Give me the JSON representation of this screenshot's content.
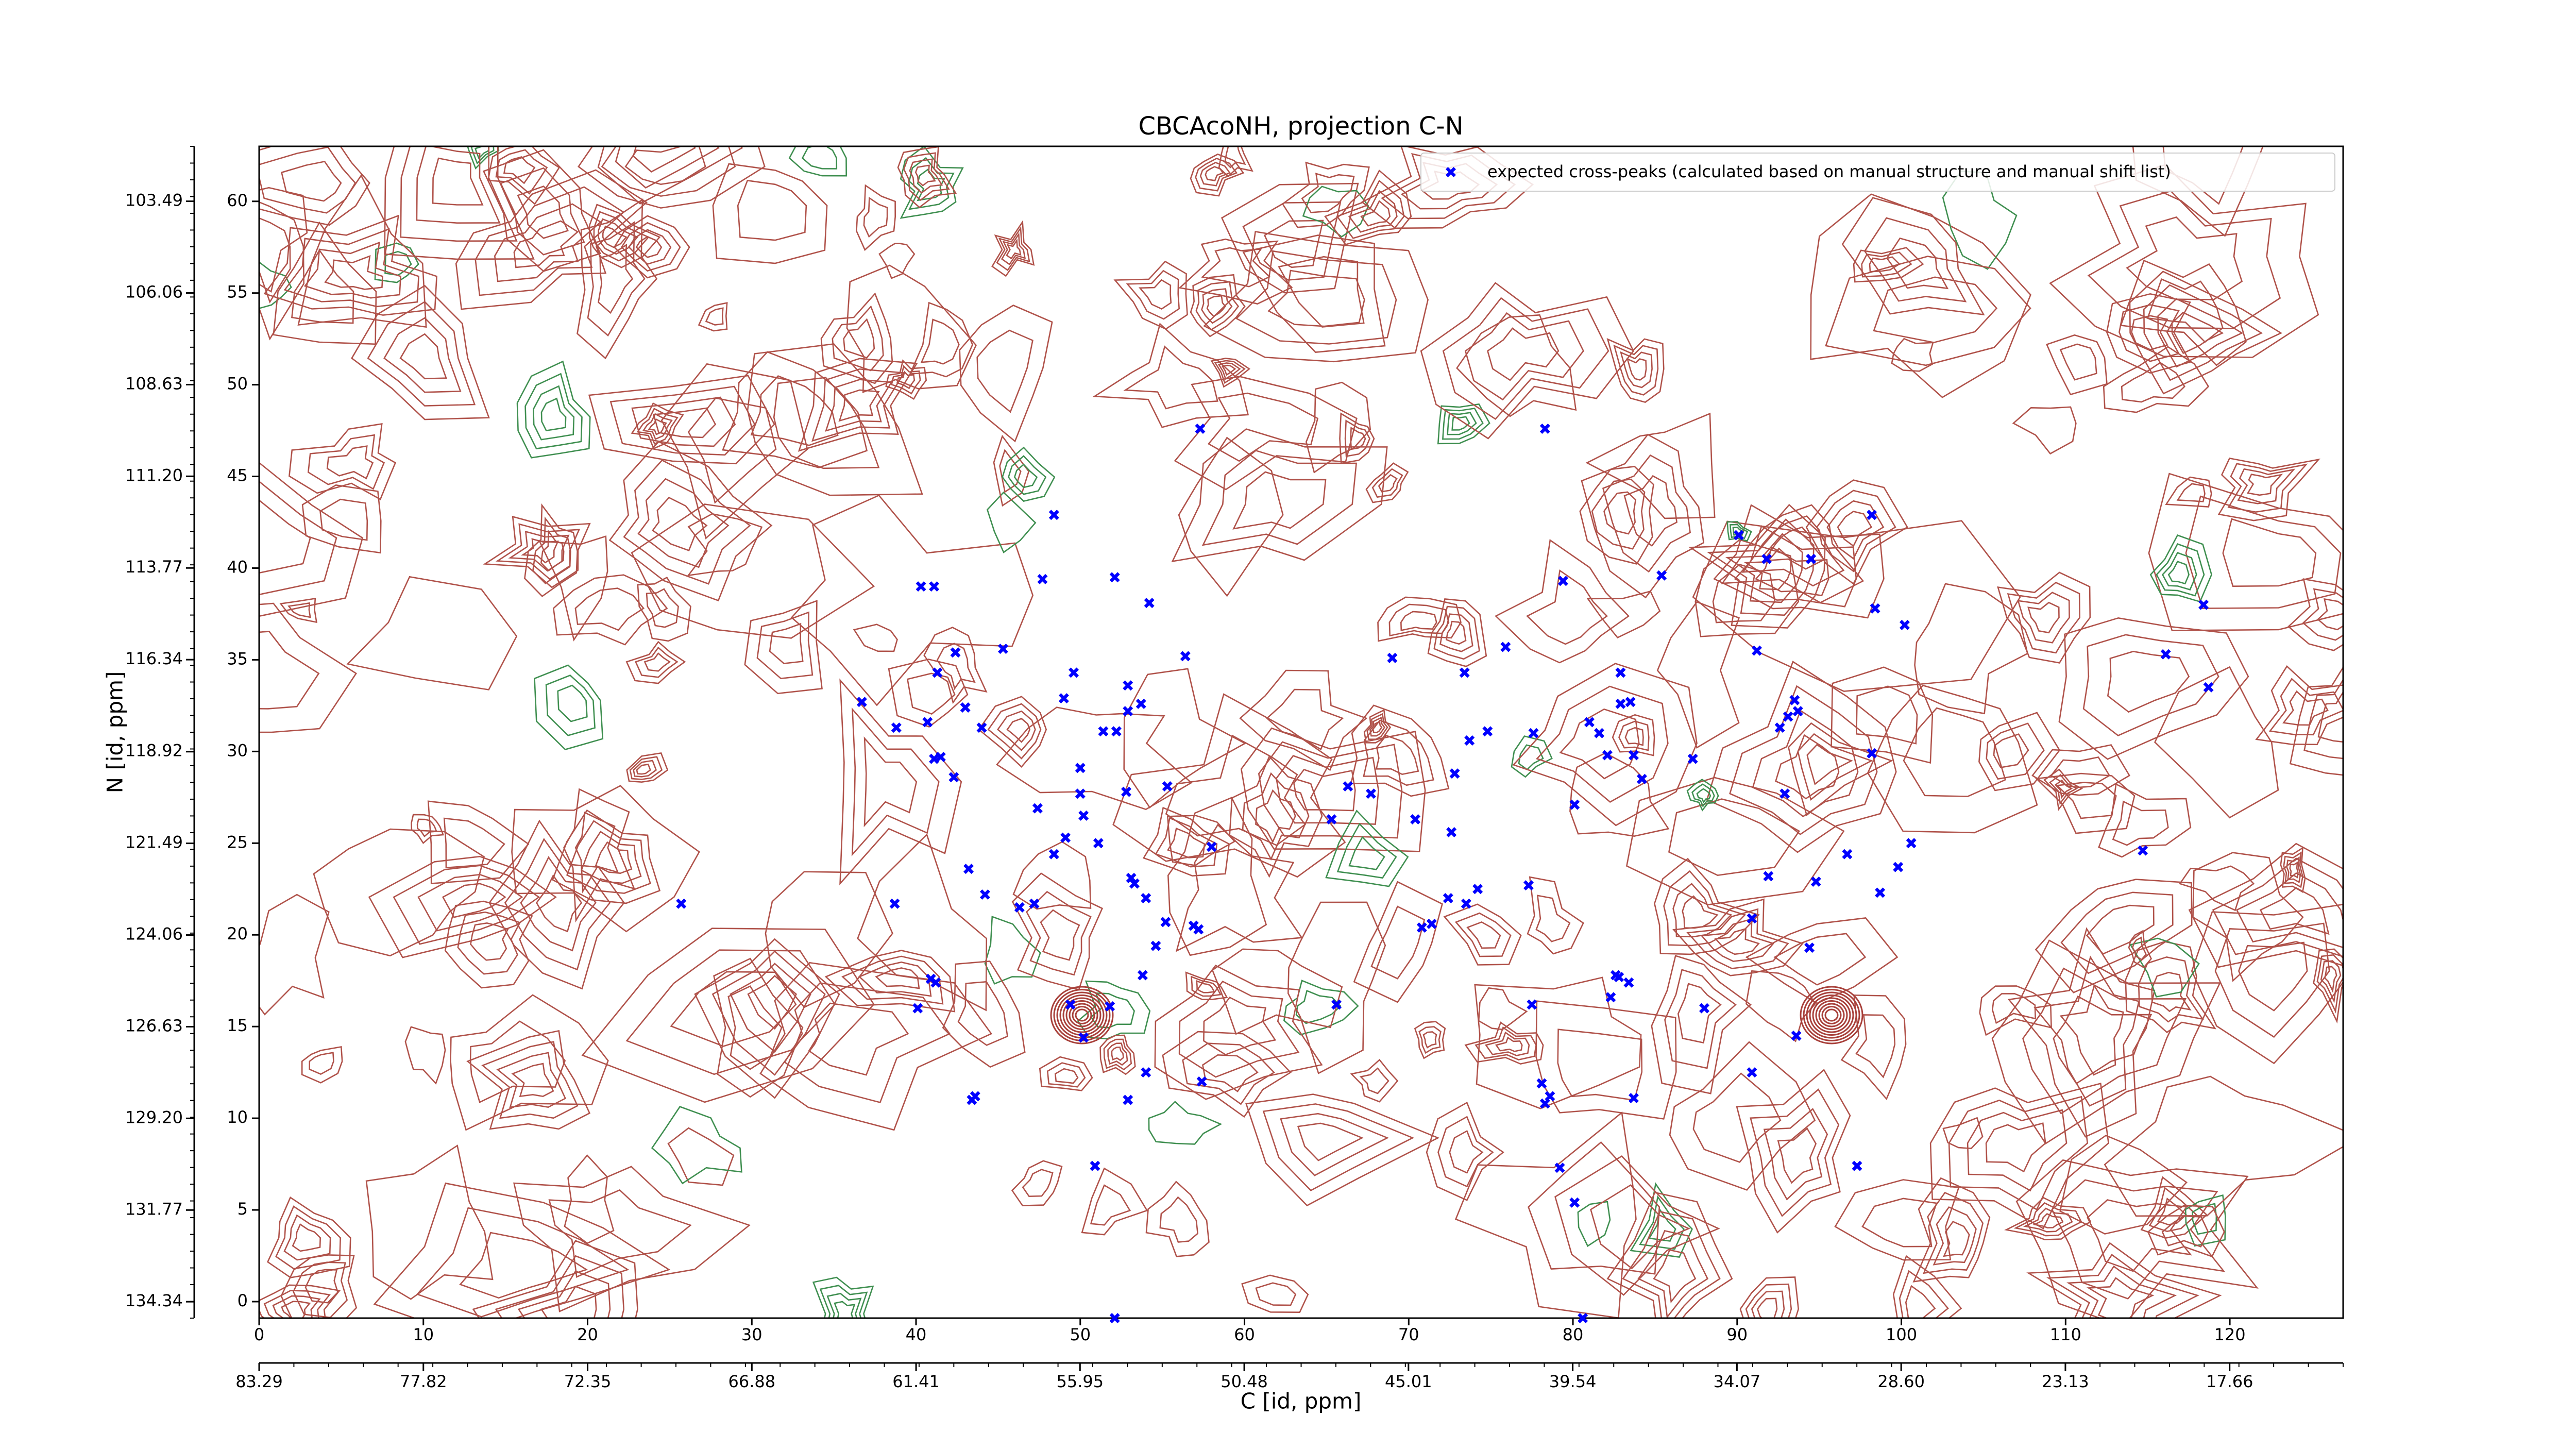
{
  "chart_data": {
    "type": "scatter",
    "title": "CBCAcoNH, projection C-N",
    "xlabel": "C [id, ppm]",
    "ylabel": "N [id, ppm]",
    "xlim": [
      0,
      126.9
    ],
    "xticks": [
      0,
      10,
      20,
      30,
      40,
      50,
      60,
      70,
      80,
      90,
      100,
      110,
      120
    ],
    "ylim": [
      -0.9,
      63
    ],
    "yticks": [
      0,
      5,
      10,
      15,
      20,
      25,
      30,
      35,
      40,
      45,
      50,
      55,
      60
    ],
    "x2lim": [
      83.29,
      13.88
    ],
    "x2ticks": [
      83.29,
      77.82,
      72.35,
      66.88,
      61.41,
      55.95,
      50.48,
      45.01,
      39.54,
      34.07,
      {
        "value": 28.6,
        "label": "28.60"
      },
      23.13,
      17.66
    ],
    "y2lim": [
      134.8,
      101.95
    ],
    "y2ticks": [
      103.49,
      106.06,
      108.63,
      {
        "value": 111.2,
        "label": "111.20"
      },
      113.77,
      116.34,
      118.92,
      121.49,
      124.06,
      126.63,
      {
        "value": 129.2,
        "label": "129.20"
      },
      131.77,
      134.34
    ],
    "legend": "upper right",
    "x": [
      25.7,
      36.7,
      38.7,
      38.8,
      40.3,
      41.1,
      40.7,
      41.1,
      41.5,
      42.4,
      41.3,
      42.3,
      43.0,
      43.2,
      44.0,
      44.2,
      45.3,
      47.2,
      47.7,
      48.4,
      48.4,
      49.0,
      49.6,
      50.0,
      50.0,
      50.2,
      51.1,
      51.4,
      52.1,
      52.2,
      52.9,
      52.9,
      53.1,
      53.3,
      54.0,
      54.2,
      53.7,
      52.8,
      55.3,
      56.4,
      55.2,
      54.6,
      56.9,
      57.2,
      58.0,
      57.3,
      49.1,
      47.4,
      46.3,
      40.9,
      41.2,
      40.1,
      43.4,
      43.6,
      49.4,
      50.2,
      51.8,
      54.0,
      52.9,
      57.4,
      50.9,
      52.1,
      53.8,
      65.3,
      65.6,
      66.3,
      67.7,
      69.0,
      70.4,
      70.8,
      71.4,
      72.4,
      72.8,
      72.6,
      73.4,
      73.5,
      73.7,
      74.8,
      75.9,
      74.2,
      77.3,
      77.5,
      77.6,
      78.1,
      78.3,
      78.6,
      78.3,
      79.4,
      80.1,
      79.2,
      80.1,
      80.6,
      81.0,
      81.6,
      82.1,
      82.3,
      82.6,
      82.8,
      82.9,
      82.9,
      83.4,
      83.5,
      83.7,
      84.2,
      83.7,
      85.4,
      87.3,
      88.0,
      90.1,
      90.9,
      90.9,
      91.2,
      91.8,
      91.9,
      92.6,
      92.9,
      93.1,
      93.5,
      93.7,
      93.6,
      94.5,
      94.4,
      94.8,
      96.7,
      97.3,
      98.2,
      98.2,
      98.4,
      98.7,
      99.8,
      100.2,
      100.6,
      114.7,
      116.1,
      118.4,
      118.7
    ],
    "series": [
      {
        "name": "expected cross-peaks (calculated based on manual structure and manual shift list)",
        "color": "#0000ff",
        "values": [
          21.7,
          32.7,
          21.7,
          31.3,
          39.0,
          39.0,
          31.6,
          29.6,
          29.7,
          35.4,
          34.3,
          28.6,
          32.4,
          23.6,
          31.3,
          22.2,
          35.6,
          21.7,
          39.4,
          42.9,
          24.4,
          32.9,
          34.3,
          29.1,
          27.7,
          26.5,
          25.0,
          31.1,
          39.5,
          31.1,
          32.2,
          33.6,
          23.1,
          22.8,
          22.0,
          38.1,
          32.6,
          27.8,
          28.1,
          35.2,
          20.7,
          19.4,
          20.5,
          20.3,
          24.8,
          47.6,
          25.3,
          26.9,
          21.5,
          17.6,
          17.4,
          16.0,
          11.0,
          11.2,
          16.2,
          14.4,
          16.1,
          12.5,
          11.0,
          12.0,
          7.4,
          -0.9,
          17.8,
          26.3,
          16.2,
          28.1,
          27.7,
          35.1,
          26.3,
          20.4,
          20.6,
          22.0,
          28.8,
          25.6,
          34.3,
          21.7,
          30.6,
          31.1,
          35.7,
          22.5,
          22.7,
          16.2,
          31.0,
          11.9,
          10.8,
          11.2,
          47.6,
          39.3,
          27.1,
          7.3,
          5.4,
          -0.9,
          31.6,
          31.0,
          29.8,
          16.6,
          17.8,
          17.7,
          32.6,
          34.3,
          17.4,
          32.7,
          29.8,
          28.5,
          11.1,
          39.6,
          29.6,
          16.0,
          41.8,
          20.9,
          12.5,
          35.5,
          40.5,
          23.2,
          31.3,
          27.7,
          31.9,
          32.8,
          32.2,
          14.5,
          40.5,
          19.3,
          22.9,
          24.4,
          7.4,
          42.9,
          29.9,
          37.8,
          22.3,
          23.7,
          36.9,
          25.0,
          24.6,
          35.3,
          38.0,
          33.5
        ]
      }
    ]
  }
}
